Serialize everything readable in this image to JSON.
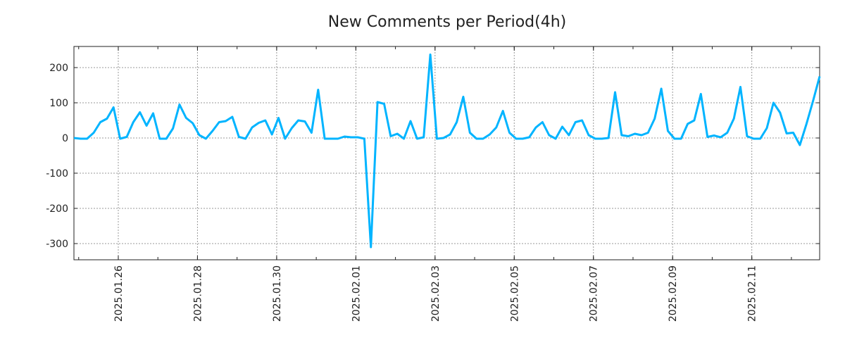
{
  "chart_data": {
    "type": "line",
    "title": "New Comments per Period(4h)",
    "xlabel": "",
    "ylabel": "",
    "period": "4h",
    "x_unit": "period index (4h steps)",
    "xlim": [
      0,
      113
    ],
    "ylim": [
      -346,
      260
    ],
    "grid": true,
    "y_ticks": [
      200,
      100,
      0,
      -100,
      -200,
      -300
    ],
    "y_tick_labels": [
      "200",
      "100",
      "0",
      "-100",
      "-200",
      "-300"
    ],
    "x_ticks": [
      6.72,
      18.72,
      30.72,
      42.72,
      54.72,
      66.72,
      78.72,
      90.72,
      102.72
    ],
    "x_tick_labels": [
      "2025.01.26",
      "2025.01.28",
      "2025.01.30",
      "2025.02.01",
      "2025.02.03",
      "2025.02.05",
      "2025.02.07",
      "2025.02.09",
      "2025.02.11"
    ],
    "series": [
      {
        "name": "New Comments",
        "color": "#00b4ff",
        "values": [
          0,
          -2,
          -2,
          15,
          45,
          55,
          87,
          -2,
          3,
          45,
          73,
          35,
          70,
          -2,
          -2,
          27,
          95,
          57,
          42,
          8,
          -2,
          20,
          45,
          48,
          60,
          3,
          -2,
          30,
          43,
          50,
          10,
          57,
          -2,
          28,
          50,
          47,
          15,
          137,
          -2,
          -2,
          -2,
          4,
          2,
          2,
          -2,
          -310,
          102,
          97,
          5,
          12,
          -2,
          48,
          -2,
          2,
          237,
          -2,
          0,
          10,
          45,
          117,
          15,
          -2,
          -2,
          10,
          30,
          77,
          15,
          -2,
          -2,
          2,
          30,
          45,
          8,
          -2,
          32,
          8,
          45,
          50,
          8,
          -2,
          -2,
          0,
          130,
          8,
          5,
          12,
          8,
          15,
          55,
          140,
          20,
          -2,
          -2,
          40,
          50,
          125,
          3,
          7,
          2,
          15,
          55,
          145,
          5,
          -2,
          -2,
          28,
          100,
          72,
          13,
          15,
          -20,
          40,
          105,
          175
        ]
      }
    ]
  }
}
